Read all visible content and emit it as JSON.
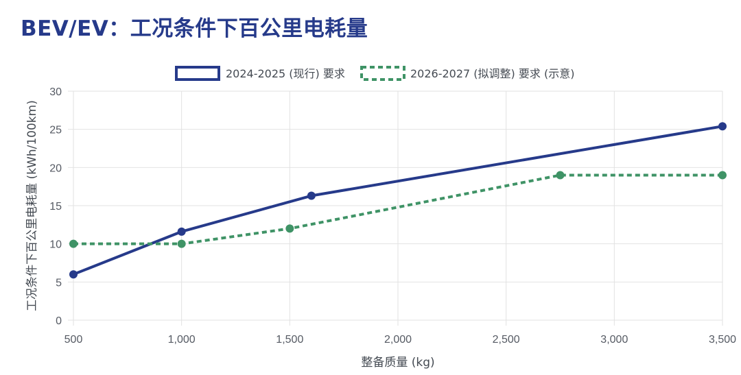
{
  "page_title": "BEV/EV：工况条件下百公里电耗量",
  "colors": {
    "series1": "#263a8a",
    "series2": "#3f9366",
    "grid": "#e2e2e2",
    "title": "#263a8a"
  },
  "chart_data": {
    "type": "line",
    "xlabel": "整备质量 (kg)",
    "ylabel": "工况条件下百公里电耗量 (kWh/100km)",
    "xlim": [
      500,
      3500
    ],
    "ylim": [
      0,
      30
    ],
    "x_ticks": [
      "500",
      "1,000",
      "1,500",
      "2,000",
      "2,500",
      "3,000",
      "3,500"
    ],
    "x_tick_values": [
      500,
      1000,
      1500,
      2000,
      2500,
      3000,
      3500
    ],
    "y_ticks": [
      "0",
      "5",
      "10",
      "15",
      "20",
      "25",
      "30"
    ],
    "y_tick_values": [
      0,
      5,
      10,
      15,
      20,
      25,
      30
    ],
    "grid": true,
    "legend_position": "top-center",
    "series": [
      {
        "name": "2024-2025 (现行) 要求",
        "style": "solid",
        "color": "#263a8a",
        "points": [
          [
            500,
            6.0
          ],
          [
            1000,
            11.6
          ],
          [
            1600,
            16.3
          ],
          [
            3500,
            25.4
          ]
        ]
      },
      {
        "name": "2026-2027 (拟调整) 要求 (示意)",
        "style": "dashed",
        "color": "#3f9366",
        "points": [
          [
            500,
            10.0
          ],
          [
            1000,
            10.0
          ],
          [
            1500,
            12.0
          ],
          [
            2750,
            19.0
          ],
          [
            3500,
            19.0
          ]
        ]
      }
    ]
  }
}
